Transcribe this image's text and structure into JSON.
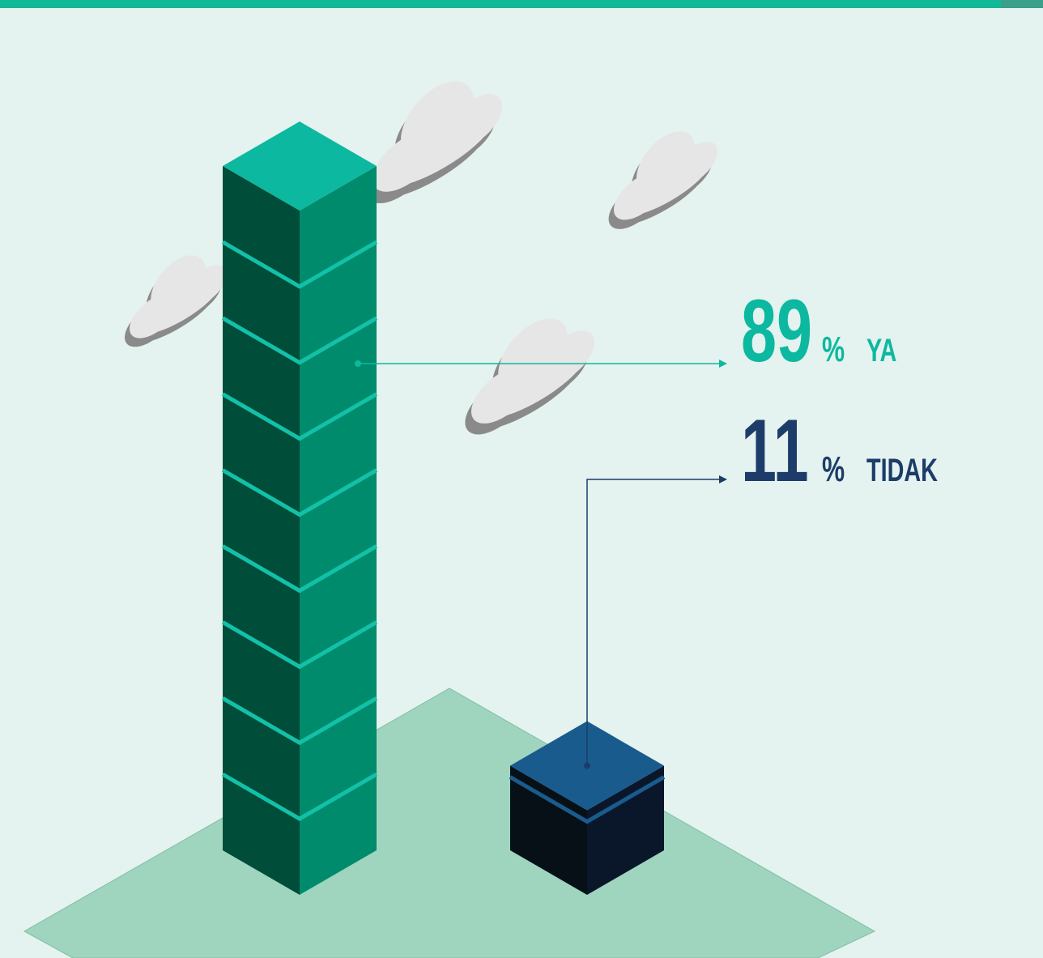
{
  "chart_data": {
    "type": "isometric-bar",
    "categories": [
      "YA",
      "TIDAK"
    ],
    "values": [
      89,
      11
    ],
    "unit": "%",
    "colors": [
      "#0db8a0",
      "#1d3c6a"
    ],
    "ylim": [
      0,
      89
    ]
  }
}
